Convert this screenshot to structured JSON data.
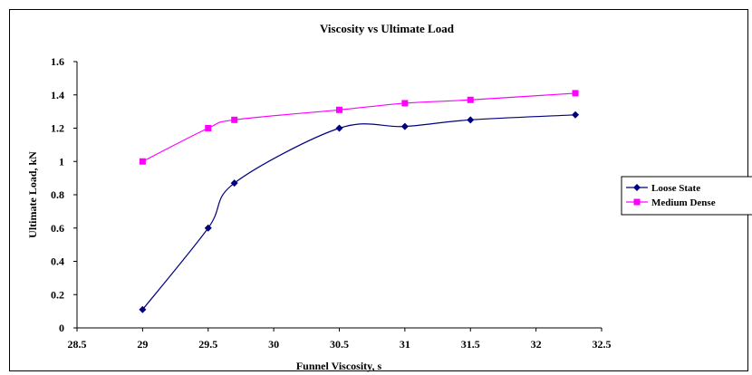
{
  "chart_data": {
    "type": "line",
    "title": "Viscosity vs Ultimate Load",
    "xlabel": "Funnel Viscosity, s",
    "ylabel": "Ultimate Load, kN",
    "xlim": [
      28.5,
      32.5
    ],
    "ylim": [
      0,
      1.6
    ],
    "xticks": [
      "28.5",
      "29",
      "29.5",
      "30",
      "30.5",
      "31",
      "31.5",
      "32",
      "32.5"
    ],
    "yticks": [
      "0",
      "0.2",
      "0.4",
      "0.6",
      "0.8",
      "1",
      "1.2",
      "1.4",
      "1.6"
    ],
    "grid": false,
    "legend_position": "right",
    "series": [
      {
        "name": "Loose State",
        "color": "#000080",
        "marker": "diamond",
        "x": [
          29,
          29.5,
          29.7,
          30.5,
          31,
          31.5,
          32.3
        ],
        "y": [
          0.11,
          0.6,
          0.87,
          1.2,
          1.21,
          1.25,
          1.28
        ]
      },
      {
        "name": "Medium Dense",
        "color": "#FF00FF",
        "marker": "square",
        "x": [
          29,
          29.5,
          29.7,
          30.5,
          31,
          31.5,
          32.3
        ],
        "y": [
          1.0,
          1.2,
          1.25,
          1.31,
          1.35,
          1.37,
          1.41
        ]
      }
    ]
  }
}
